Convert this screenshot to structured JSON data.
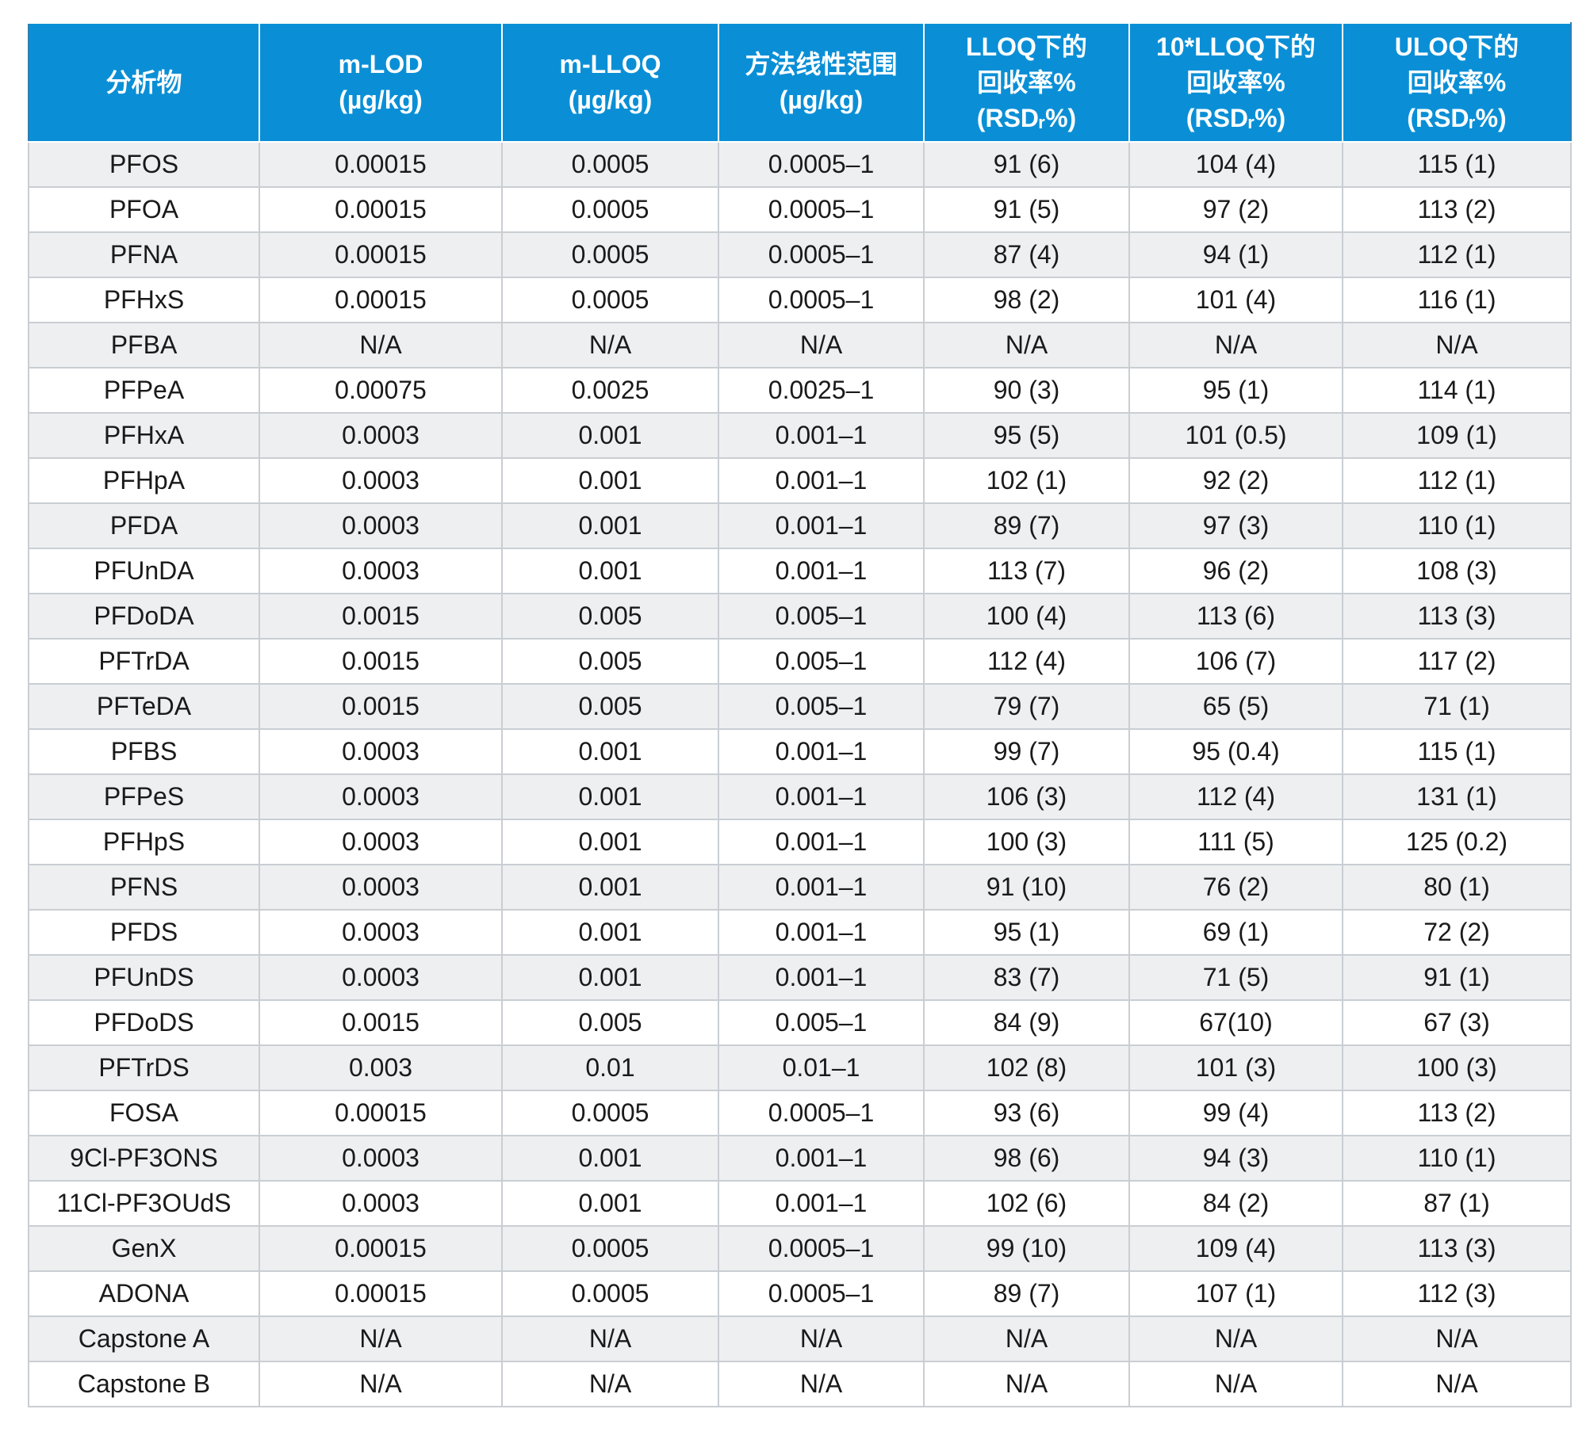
{
  "table": {
    "headers": [
      {
        "lines": [
          "分析物"
        ]
      },
      {
        "lines": [
          "m-LOD",
          "(µg/kg)"
        ]
      },
      {
        "lines": [
          "m-LLOQ",
          "(µg/kg)"
        ]
      },
      {
        "lines": [
          "方法线性范围",
          "(µg/kg)"
        ]
      },
      {
        "lines": [
          "LLOQ下的",
          "回收率%",
          "(RSDᵣ%)"
        ]
      },
      {
        "lines": [
          "10*LLOQ下的",
          "回收率%",
          "(RSDᵣ%)"
        ]
      },
      {
        "lines": [
          "ULOQ下的",
          "回收率%",
          "(RSDᵣ%)"
        ]
      }
    ],
    "rows": [
      [
        "PFOS",
        "0.00015",
        "0.0005",
        "0.0005–1",
        "91 (6)",
        "104 (4)",
        "115 (1)"
      ],
      [
        "PFOA",
        "0.00015",
        "0.0005",
        "0.0005–1",
        "91 (5)",
        "97 (2)",
        "113 (2)"
      ],
      [
        "PFNA",
        "0.00015",
        "0.0005",
        "0.0005–1",
        "87 (4)",
        "94 (1)",
        "112 (1)"
      ],
      [
        "PFHxS",
        "0.00015",
        "0.0005",
        "0.0005–1",
        "98 (2)",
        "101 (4)",
        "116 (1)"
      ],
      [
        "PFBA",
        "N/A",
        "N/A",
        "N/A",
        "N/A",
        "N/A",
        "N/A"
      ],
      [
        "PFPeA",
        "0.00075",
        "0.0025",
        "0.0025–1",
        "90 (3)",
        "95 (1)",
        "114 (1)"
      ],
      [
        "PFHxA",
        "0.0003",
        "0.001",
        "0.001–1",
        "95 (5)",
        "101 (0.5)",
        "109 (1)"
      ],
      [
        "PFHpA",
        "0.0003",
        "0.001",
        "0.001–1",
        "102 (1)",
        "92 (2)",
        "112 (1)"
      ],
      [
        "PFDA",
        "0.0003",
        "0.001",
        "0.001–1",
        "89 (7)",
        "97 (3)",
        "110 (1)"
      ],
      [
        "PFUnDA",
        "0.0003",
        "0.001",
        "0.001–1",
        "113 (7)",
        "96 (2)",
        "108 (3)"
      ],
      [
        "PFDoDA",
        "0.0015",
        "0.005",
        "0.005–1",
        "100 (4)",
        "113 (6)",
        "113 (3)"
      ],
      [
        "PFTrDA",
        "0.0015",
        "0.005",
        "0.005–1",
        "112 (4)",
        "106 (7)",
        "117 (2)"
      ],
      [
        "PFTeDA",
        "0.0015",
        "0.005",
        "0.005–1",
        "79 (7)",
        "65 (5)",
        "71 (1)"
      ],
      [
        "PFBS",
        "0.0003",
        "0.001",
        "0.001–1",
        "99 (7)",
        "95 (0.4)",
        "115 (1)"
      ],
      [
        "PFPeS",
        "0.0003",
        "0.001",
        "0.001–1",
        "106 (3)",
        "112 (4)",
        "131 (1)"
      ],
      [
        "PFHpS",
        "0.0003",
        "0.001",
        "0.001–1",
        "100 (3)",
        "111 (5)",
        "125 (0.2)"
      ],
      [
        "PFNS",
        "0.0003",
        "0.001",
        "0.001–1",
        "91 (10)",
        "76 (2)",
        "80 (1)"
      ],
      [
        "PFDS",
        "0.0003",
        "0.001",
        "0.001–1",
        "95 (1)",
        "69 (1)",
        "72 (2)"
      ],
      [
        "PFUnDS",
        "0.0003",
        "0.001",
        "0.001–1",
        "83 (7)",
        "71 (5)",
        "91 (1)"
      ],
      [
        "PFDoDS",
        "0.0015",
        "0.005",
        "0.005–1",
        "84 (9)",
        "67(10)",
        "67 (3)"
      ],
      [
        "PFTrDS",
        "0.003",
        "0.01",
        "0.01–1",
        "102 (8)",
        "101 (3)",
        "100 (3)"
      ],
      [
        "FOSA",
        "0.00015",
        "0.0005",
        "0.0005–1",
        "93 (6)",
        "99 (4)",
        "113 (2)"
      ],
      [
        "9Cl-PF3ONS",
        "0.0003",
        "0.001",
        "0.001–1",
        "98 (6)",
        "94 (3)",
        "110 (1)"
      ],
      [
        "11Cl-PF3OUdS",
        "0.0003",
        "0.001",
        "0.001–1",
        "102 (6)",
        "84 (2)",
        "87 (1)"
      ],
      [
        "GenX",
        "0.00015",
        "0.0005",
        "0.0005–1",
        "99 (10)",
        "109 (4)",
        "113 (3)"
      ],
      [
        "ADONA",
        "0.00015",
        "0.0005",
        "0.0005–1",
        "89 (7)",
        "107 (1)",
        "112 (3)"
      ],
      [
        "Capstone A",
        "N/A",
        "N/A",
        "N/A",
        "N/A",
        "N/A",
        "N/A"
      ],
      [
        "Capstone B",
        "N/A",
        "N/A",
        "N/A",
        "N/A",
        "N/A",
        "N/A"
      ]
    ]
  }
}
